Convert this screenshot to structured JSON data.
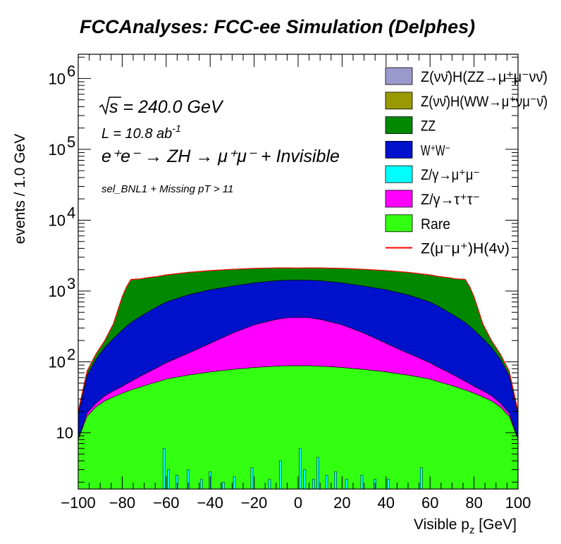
{
  "chart_data": {
    "type": "area",
    "title": "FCCAnalyses: FCC-ee Simulation (Delphes)",
    "xlabel": "Visible p",
    "xlabel_sub": "z",
    "xlabel_unit": " [GeV]",
    "ylabel": "events / 1.0 GeV",
    "y_scale": "log",
    "xlim": [
      -100,
      100
    ],
    "ylim": [
      1.6,
      2200000
    ],
    "x_ticks": [
      -100,
      -80,
      -60,
      -40,
      -20,
      0,
      20,
      40,
      60,
      80,
      100
    ],
    "y_ticks": [
      {
        "value": 10,
        "base": "10",
        "exp": ""
      },
      {
        "value": 100,
        "base": "10",
        "exp": "2"
      },
      {
        "value": 1000,
        "base": "10",
        "exp": "3"
      },
      {
        "value": 10000,
        "base": "10",
        "exp": "4"
      },
      {
        "value": 100000,
        "base": "10",
        "exp": "5"
      },
      {
        "value": 1000000,
        "base": "10",
        "exp": "6"
      }
    ],
    "stacked": true,
    "legend_position": "top-right",
    "x": [
      -100,
      -96,
      -92,
      -88,
      -84,
      -80,
      -78,
      -76,
      -72,
      -68,
      -64,
      -60,
      -50,
      -40,
      -30,
      -20,
      -10,
      -5,
      0,
      5,
      10,
      20,
      30,
      40,
      50,
      60,
      64,
      68,
      72,
      76,
      78,
      80,
      84,
      88,
      92,
      96,
      100
    ],
    "series": [
      {
        "name": "Rare",
        "color": "#33ff10",
        "values": [
          8,
          17,
          23,
          28,
          32,
          36,
          38,
          40,
          44,
          48,
          52,
          57,
          65,
          72,
          78,
          83,
          87,
          88,
          88,
          88,
          87,
          83,
          78,
          72,
          65,
          57,
          52,
          48,
          44,
          40,
          38,
          36,
          32,
          28,
          23,
          17,
          8
        ]
      },
      {
        "name": "Z/γ→τ⁺τ⁻",
        "color": "#ff00ff",
        "values": [
          0,
          2,
          3,
          5,
          7,
          9,
          11,
          13,
          18,
          24,
          31,
          40,
          67,
          110,
          175,
          250,
          310,
          330,
          335,
          330,
          310,
          250,
          175,
          110,
          67,
          40,
          31,
          24,
          18,
          13,
          11,
          9,
          7,
          5,
          3,
          2,
          0
        ]
      },
      {
        "name": "Z/γ→μ⁺μ⁻",
        "color": "#00ffff",
        "values": [
          0,
          0,
          0,
          0,
          0,
          0,
          0,
          0,
          0,
          0,
          0,
          0,
          0,
          0,
          0,
          0,
          0,
          0,
          0,
          0,
          0,
          0,
          0,
          0,
          0,
          0,
          0,
          0,
          0,
          0,
          0,
          0,
          0,
          0,
          0,
          0,
          0
        ]
      },
      {
        "name": "W⁺W⁻",
        "color": "#0011cc",
        "values": [
          10,
          45,
          82,
          125,
          175,
          235,
          270,
          305,
          370,
          440,
          520,
          600,
          750,
          860,
          920,
          970,
          1000,
          1000,
          1000,
          1000,
          1000,
          970,
          920,
          860,
          750,
          600,
          520,
          440,
          370,
          305,
          270,
          235,
          175,
          125,
          82,
          45,
          10
        ]
      },
      {
        "name": "ZZ",
        "color": "#008800",
        "values": [
          2,
          10,
          20,
          40,
          130,
          550,
          830,
          1100,
          1050,
          1040,
          1000,
          990,
          950,
          900,
          850,
          780,
          720,
          700,
          690,
          700,
          720,
          780,
          850,
          900,
          950,
          990,
          1000,
          1040,
          1050,
          1100,
          830,
          550,
          130,
          40,
          20,
          10,
          2
        ]
      },
      {
        "name": "Z(νν̄)H(WW→μ⁺νμ⁻ν̄)",
        "color": "#999900",
        "values": [
          0,
          0,
          0,
          0,
          0,
          0,
          0,
          0,
          0,
          0,
          0,
          0,
          0,
          0,
          0,
          0,
          0,
          0,
          0,
          0,
          0,
          0,
          0,
          0,
          0,
          0,
          0,
          0,
          0,
          0,
          0,
          0,
          0,
          0,
          0,
          0,
          0
        ]
      },
      {
        "name": "Z(νν̄)H(ZZ→μ⁺μ⁻νν̄)",
        "color": "#9999cc",
        "values": [
          0,
          0,
          0,
          0,
          0,
          0,
          0,
          0,
          0,
          0,
          0,
          0,
          0,
          0,
          0,
          0,
          0,
          0,
          0,
          0,
          0,
          0,
          0,
          0,
          0,
          0,
          0,
          0,
          0,
          0,
          0,
          0,
          0,
          0,
          0,
          0,
          0
        ]
      },
      {
        "name": "Z(μ⁻μ⁺)H(4ν)",
        "color": "#ff0000",
        "style": "line",
        "values": [
          20,
          74,
          128,
          198,
          344,
          830,
          1149,
          1458,
          1482,
          1552,
          1603,
          1687,
          1832,
          1942,
          2023,
          2083,
          2117,
          2118,
          2113,
          2118,
          2117,
          2083,
          2023,
          1942,
          1832,
          1687,
          1603,
          1552,
          1482,
          1458,
          1149,
          830,
          344,
          198,
          128,
          74,
          20
        ]
      }
    ],
    "mumu_spikes": [
      {
        "x": -61,
        "v": 6
      },
      {
        "x": -59,
        "v": 3
      },
      {
        "x": -55,
        "v": 2.5
      },
      {
        "x": -50,
        "v": 3
      },
      {
        "x": -44,
        "v": 2.2
      },
      {
        "x": -40,
        "v": 2.8
      },
      {
        "x": -34,
        "v": 2
      },
      {
        "x": -29,
        "v": 2.4
      },
      {
        "x": -21,
        "v": 3.2
      },
      {
        "x": -13,
        "v": 2.2
      },
      {
        "x": -8,
        "v": 4
      },
      {
        "x": 1,
        "v": 6
      },
      {
        "x": 3,
        "v": 3
      },
      {
        "x": 7,
        "v": 2.2
      },
      {
        "x": 9,
        "v": 4.5
      },
      {
        "x": 13,
        "v": 2.5
      },
      {
        "x": 17,
        "v": 2.8
      },
      {
        "x": 22,
        "v": 2.2
      },
      {
        "x": 29,
        "v": 2.5
      },
      {
        "x": 35,
        "v": 2.2
      },
      {
        "x": 41,
        "v": 2.2
      },
      {
        "x": 56,
        "v": 3.2
      }
    ],
    "annotations": {
      "sqrt_s": "s",
      "energy": " = 240.0 GeV",
      "lumi": "L = 10.8 ab",
      "lumi_exp": "-1",
      "process": "e⁺e⁻ → ZH → μ⁺μ⁻ + Invisible",
      "selection": "sel_BNL1 + Missing pT > 11"
    }
  }
}
